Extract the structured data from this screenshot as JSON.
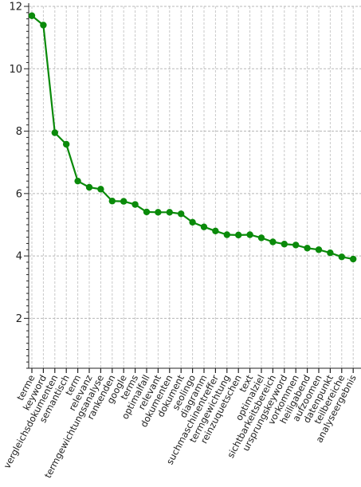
{
  "chart_data": {
    "type": "line",
    "categories": [
      "terme",
      "keyword",
      "vergleichsdokumenten",
      "semantisch",
      "term",
      "relevanz",
      "termgewichtungsanalyse",
      "rankenden",
      "google",
      "terms",
      "optimalfall",
      "relevant",
      "dokumenten",
      "dokument",
      "seolingo",
      "diagramm",
      "suchmaschinentreffer",
      "termgewichtung",
      "reinzuquetschen",
      "text",
      "optimalziel",
      "sichtbarkeitsbereich",
      "ursprungskeyword",
      "vorkommen",
      "heiligabend",
      "aufzoomen",
      "datenpunkt",
      "teilbereiche",
      "analyseergebnis"
    ],
    "series": [
      {
        "values": [
          11.7,
          11.4,
          7.95,
          7.58,
          6.4,
          6.2,
          6.14,
          5.76,
          5.75,
          5.65,
          5.41,
          5.4,
          5.4,
          5.35,
          5.08,
          4.93,
          4.8,
          4.68,
          4.67,
          4.68,
          4.58,
          4.45,
          4.38,
          4.35,
          4.25,
          4.2,
          4.1,
          3.97,
          3.9
        ]
      }
    ],
    "yticks": [
      2,
      4,
      6,
      8,
      10,
      12
    ],
    "ylim": [
      0.4,
      12
    ],
    "grid": true,
    "line_color": "#0a8a0a"
  }
}
